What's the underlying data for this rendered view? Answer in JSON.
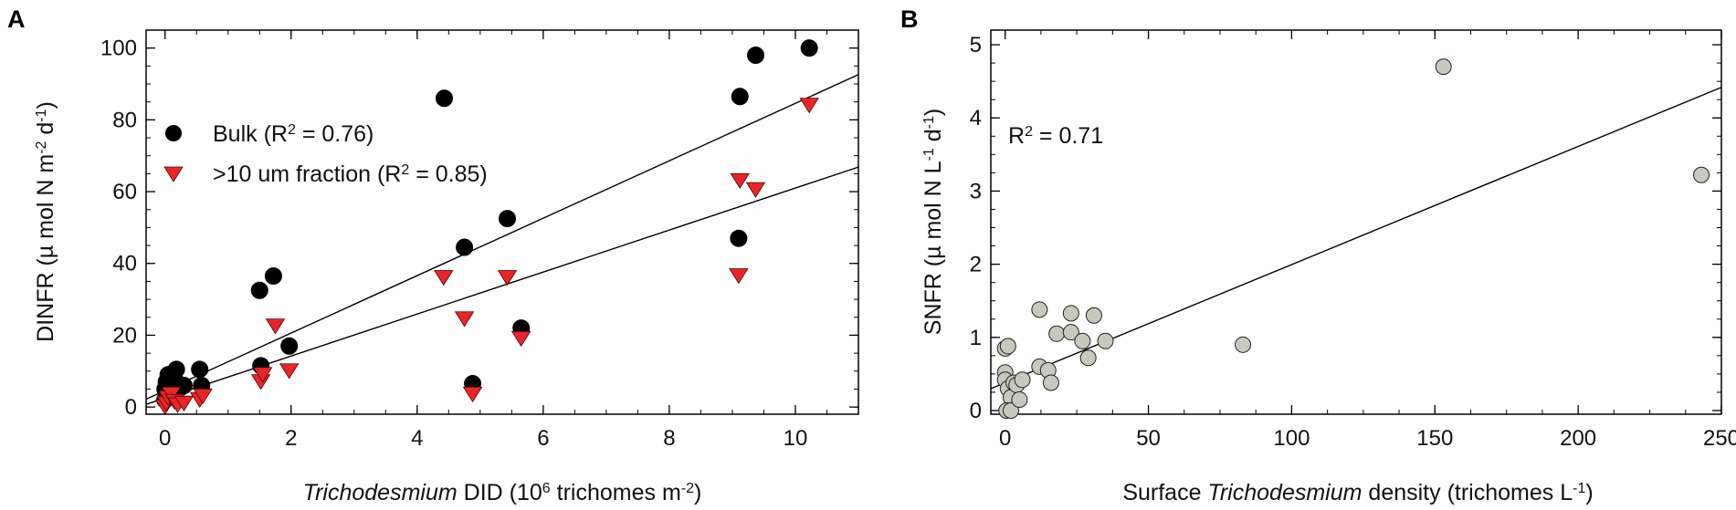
{
  "chart_data": [
    {
      "panel": "A",
      "type": "scatter",
      "xlabel": {
        "italic": "Trichodesmium",
        "text": " DID (10",
        "sup": "6",
        "text2": " trichomes m",
        "sup2": "-2",
        "text3": ")"
      },
      "ylabel": {
        "text": "DINFR (µ mol N m",
        "sup": "-2",
        "text2": " d",
        "sup2": "-1",
        "text3": ")"
      },
      "xlim": [
        -0.3,
        11
      ],
      "ylim": [
        -2,
        105
      ],
      "xticks": [
        "0",
        "2",
        "4",
        "6",
        "8",
        "10"
      ],
      "yticks": [
        "0",
        "20",
        "40",
        "60",
        "80",
        "100"
      ],
      "xtick_values": [
        0,
        2,
        4,
        6,
        8,
        10
      ],
      "ytick_values": [
        0,
        20,
        40,
        60,
        80,
        100
      ],
      "x_minor_step": 0.5,
      "y_minor_step": 5,
      "legend": [
        {
          "label": "Bulk  (R",
          "sup": "2",
          "label2": " = 0.76)",
          "marker": "circle",
          "color": "#000000"
        },
        {
          "label": ">10 um fraction  (R",
          "sup": "2",
          "label2": " = 0.85)",
          "marker": "triangle-down",
          "color": "#e8262a"
        }
      ],
      "series": [
        {
          "name": "Bulk",
          "marker": "circle",
          "color": "#000000",
          "fit": {
            "slope": 8.0,
            "intercept": 4.6
          },
          "points": [
            [
              0.0,
              2.0
            ],
            [
              0.0,
              5.0
            ],
            [
              0.02,
              7.0
            ],
            [
              0.05,
              9.0
            ],
            [
              0.08,
              6.0
            ],
            [
              0.1,
              4.0
            ],
            [
              0.15,
              8.0
            ],
            [
              0.18,
              10.5
            ],
            [
              0.25,
              5.5
            ],
            [
              0.3,
              6.0
            ],
            [
              0.55,
              10.5
            ],
            [
              0.58,
              6.0
            ],
            [
              1.5,
              32.5
            ],
            [
              1.52,
              11.5
            ],
            [
              1.72,
              36.5
            ],
            [
              1.97,
              17.0
            ],
            [
              4.43,
              86.0
            ],
            [
              4.75,
              44.5
            ],
            [
              4.88,
              6.5
            ],
            [
              5.43,
              52.5
            ],
            [
              5.65,
              22.0
            ],
            [
              9.1,
              47.0
            ],
            [
              9.12,
              86.5
            ],
            [
              9.37,
              98.0
            ],
            [
              10.22,
              100.0
            ]
          ]
        },
        {
          "name": ">10 um fraction",
          "marker": "triangle-down",
          "color": "#e8262a",
          "fit": {
            "slope": 5.85,
            "intercept": 2.5
          },
          "points": [
            [
              0.0,
              0.0
            ],
            [
              0.02,
              1.0
            ],
            [
              0.05,
              2.5
            ],
            [
              0.1,
              3.5
            ],
            [
              0.15,
              1.5
            ],
            [
              0.2,
              0.5
            ],
            [
              0.3,
              1.0
            ],
            [
              0.55,
              2.0
            ],
            [
              0.6,
              3.0
            ],
            [
              1.52,
              7.0
            ],
            [
              1.55,
              9.0
            ],
            [
              1.75,
              22.5
            ],
            [
              1.97,
              10.0
            ],
            [
              4.42,
              36.0
            ],
            [
              4.75,
              24.5
            ],
            [
              4.88,
              3.5
            ],
            [
              5.43,
              36.0
            ],
            [
              5.65,
              19.0
            ],
            [
              9.1,
              36.5
            ],
            [
              9.12,
              63.0
            ],
            [
              9.37,
              60.5
            ],
            [
              10.22,
              84.0
            ]
          ]
        }
      ]
    },
    {
      "panel": "B",
      "type": "scatter",
      "xlabel": {
        "text": "Surface ",
        "italic": "Trichodesmium",
        "text2": " density (trichomes L",
        "sup": "-1",
        "text3": ")"
      },
      "ylabel": {
        "text": "SNFR (µ mol N L",
        "sup": "-1",
        "text2": " d",
        "sup2": "-1",
        "text3": ")"
      },
      "xlim": [
        -5,
        250
      ],
      "ylim": [
        -0.05,
        5.2
      ],
      "xticks": [
        "0",
        "50",
        "100",
        "150",
        "200",
        "250"
      ],
      "yticks": [
        "0",
        "1",
        "2",
        "3",
        "4",
        "5"
      ],
      "xtick_values": [
        0,
        50,
        100,
        150,
        200,
        250
      ],
      "ytick_values": [
        0,
        1,
        2,
        3,
        4,
        5
      ],
      "x_minor_step": 12.5,
      "y_minor_step": 0.25,
      "annotation": {
        "text": "R",
        "sup": "2",
        "text2": " = 0.71"
      },
      "series": [
        {
          "name": "SNFR",
          "marker": "circle",
          "color": "#c8c8be",
          "fit": {
            "slope": 0.01615,
            "intercept": 0.38
          },
          "points": [
            [
              0.0,
              0.85
            ],
            [
              1.0,
              0.88
            ],
            [
              0.0,
              0.52
            ],
            [
              0.0,
              0.42
            ],
            [
              1.0,
              0.3
            ],
            [
              2.0,
              0.18
            ],
            [
              0.5,
              0.0
            ],
            [
              2.0,
              0.0
            ],
            [
              3.0,
              0.38
            ],
            [
              4.0,
              0.35
            ],
            [
              5.0,
              0.15
            ],
            [
              6.0,
              0.42
            ],
            [
              12.0,
              1.38
            ],
            [
              12.0,
              0.6
            ],
            [
              15.0,
              0.55
            ],
            [
              16.0,
              0.38
            ],
            [
              18.0,
              1.05
            ],
            [
              23.0,
              1.07
            ],
            [
              23.0,
              1.33
            ],
            [
              27.0,
              0.95
            ],
            [
              29.0,
              0.72
            ],
            [
              31.0,
              1.3
            ],
            [
              35.0,
              0.95
            ],
            [
              83.0,
              0.9
            ],
            [
              153.0,
              4.7
            ],
            [
              243.0,
              3.22
            ]
          ]
        }
      ]
    }
  ]
}
